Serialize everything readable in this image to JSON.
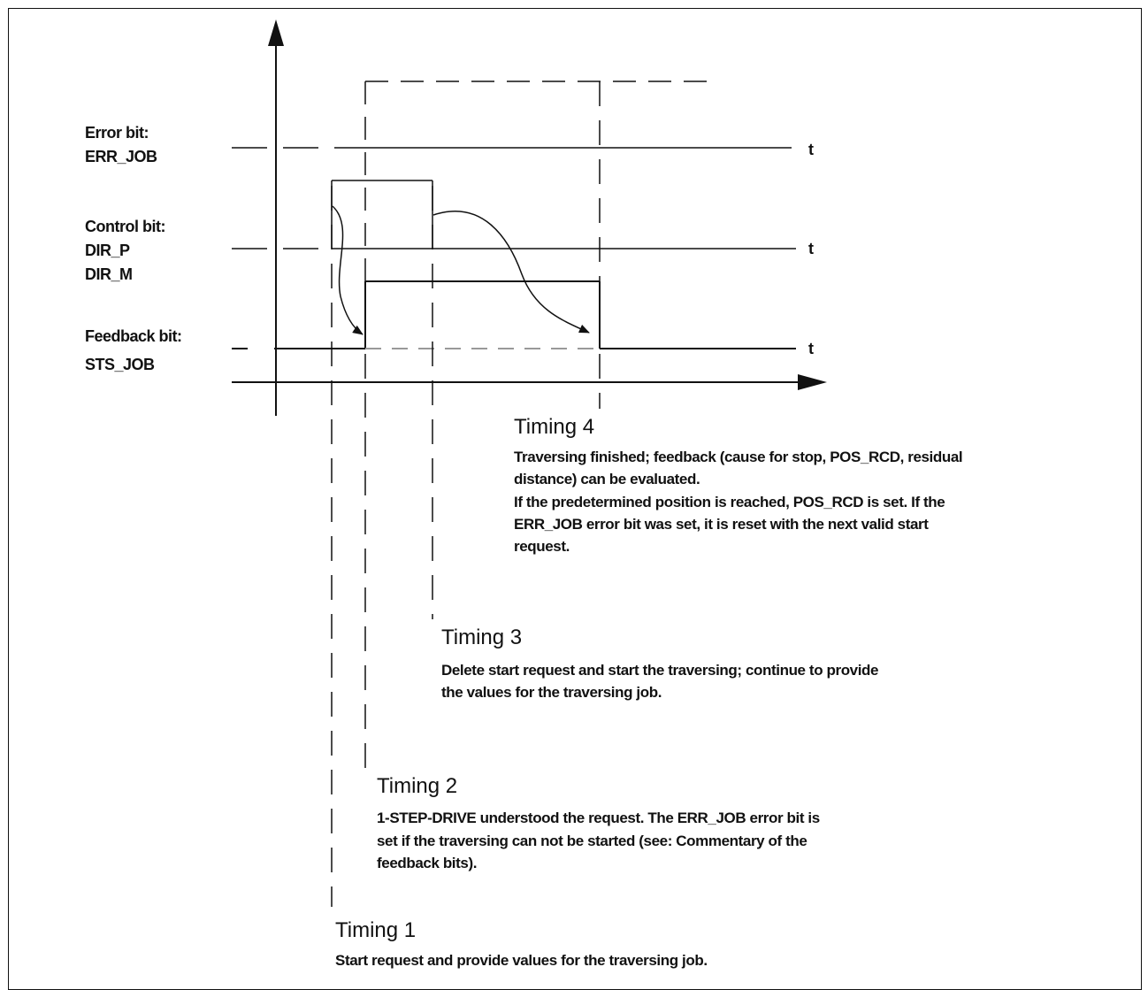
{
  "signals": {
    "error": {
      "title": "Error bit:",
      "name": "ERR_JOB",
      "axis": "t"
    },
    "control": {
      "title": "Control bit:",
      "name_p": "DIR_P",
      "name_m": "DIR_M",
      "axis": "t"
    },
    "feedback": {
      "title": "Feedback bit:",
      "name": "STS_JOB",
      "axis": "t"
    }
  },
  "timings": {
    "t4": {
      "heading": "Timing 4",
      "lines": [
        "Traversing finished; feedback (cause for stop, POS_RCD, residual",
        "distance) can be evaluated.",
        "If the predetermined position is reached, POS_RCD is set. If the",
        "ERR_JOB error bit was set, it is reset with the next valid start",
        "request."
      ]
    },
    "t3": {
      "heading": "Timing 3",
      "lines": [
        "Delete start request and start the traversing; continue to provide",
        "the values for the traversing job."
      ]
    },
    "t2": {
      "heading": "Timing 2",
      "lines": [
        "1-STEP-DRIVE understood the request. The ERR_JOB error bit is",
        "set if the traversing can not be started (see: Commentary of the",
        "feedback bits)."
      ]
    },
    "t1": {
      "heading": "Timing 1",
      "lines": [
        "Start request and provide values for the traversing job."
      ]
    }
  }
}
